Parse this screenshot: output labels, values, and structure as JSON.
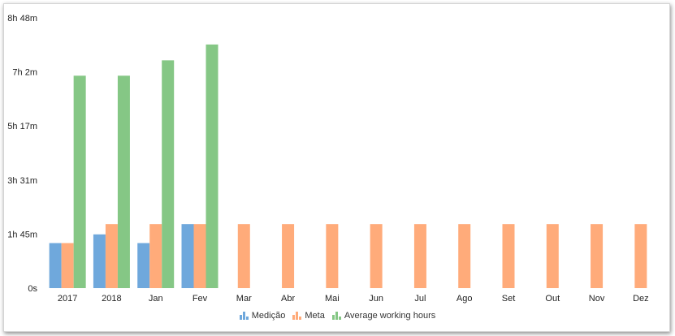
{
  "chart_data": {
    "type": "bar",
    "categories": [
      "2017",
      "2018",
      "Jan",
      "Fev",
      "Mar",
      "Abr",
      "Mai",
      "Jun",
      "Jul",
      "Ago",
      "Set",
      "Out",
      "Nov",
      "Dez"
    ],
    "y_tick_labels": [
      "0s",
      "1h 45m",
      "3h 31m",
      "5h 17m",
      "7h 2m",
      "8h 48m"
    ],
    "y_tick_values_minutes": [
      0,
      105.6,
      211.2,
      316.8,
      422.4,
      528
    ],
    "ylim_minutes": [
      0,
      528
    ],
    "series": [
      {
        "name": "Medição",
        "color": "#6fa8dc",
        "values_minutes": [
          88,
          105,
          88,
          125,
          null,
          null,
          null,
          null,
          null,
          null,
          null,
          null,
          null,
          null
        ]
      },
      {
        "name": "Meta",
        "color": "#ffab7a",
        "values_minutes": [
          88,
          125,
          125,
          125,
          125,
          125,
          125,
          125,
          125,
          125,
          125,
          125,
          125,
          125
        ]
      },
      {
        "name": "Average working hours",
        "color": "#85c785",
        "values_minutes": [
          415,
          415,
          445,
          476,
          null,
          null,
          null,
          null,
          null,
          null,
          null,
          null,
          null,
          null
        ]
      }
    ],
    "grid": false,
    "legend_position": "bottom-center"
  }
}
